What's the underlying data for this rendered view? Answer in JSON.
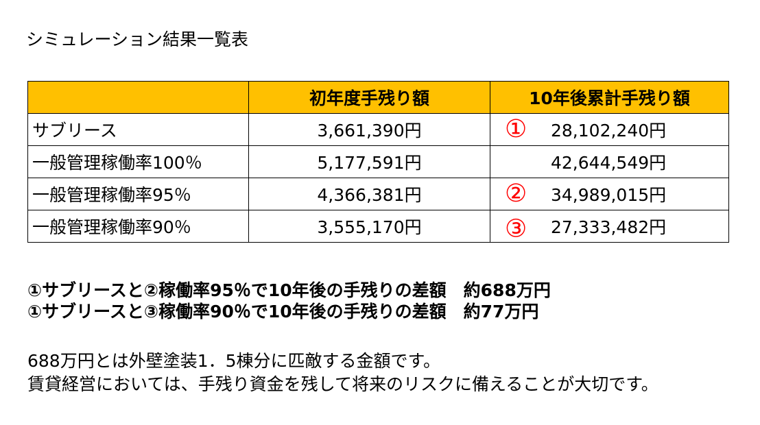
{
  "title": "シミュレーション結果一覧表",
  "table": {
    "headers": {
      "label": "",
      "first_year": "初年度手残り額",
      "ten_year": "10年後累計手残り額"
    },
    "rows": [
      {
        "label": "サブリース",
        "first_year": "3,661,390円",
        "ten_year": "28,102,240円",
        "marker": "①"
      },
      {
        "label": "一般管理稼働率100％",
        "first_year": "5,177,591円",
        "ten_year": "42,644,549円",
        "marker": ""
      },
      {
        "label": "一般管理稼働率95％",
        "first_year": "4,366,381円",
        "ten_year": "34,989,015円",
        "marker": "②"
      },
      {
        "label": "一般管理稼働率90％",
        "first_year": "3,555,170円",
        "ten_year": "27,333,482円",
        "marker": "③"
      }
    ]
  },
  "summary": {
    "line1": "①サブリースと②稼働率95％で10年後の手残りの差額　約688万円",
    "line2": "①サブリースと③稼働率90％で10年後の手残りの差額　約77万円"
  },
  "note": {
    "line1": "688万円とは外壁塗装1．5棟分に匹敵する金額です。",
    "line2": "賃貸経営においては、手残り資金を残して将来のリスクに備えることが大切です。"
  },
  "colors": {
    "header_bg": "#ffc000",
    "marker": "#ff0000",
    "text": "#000000",
    "border": "#000000"
  }
}
